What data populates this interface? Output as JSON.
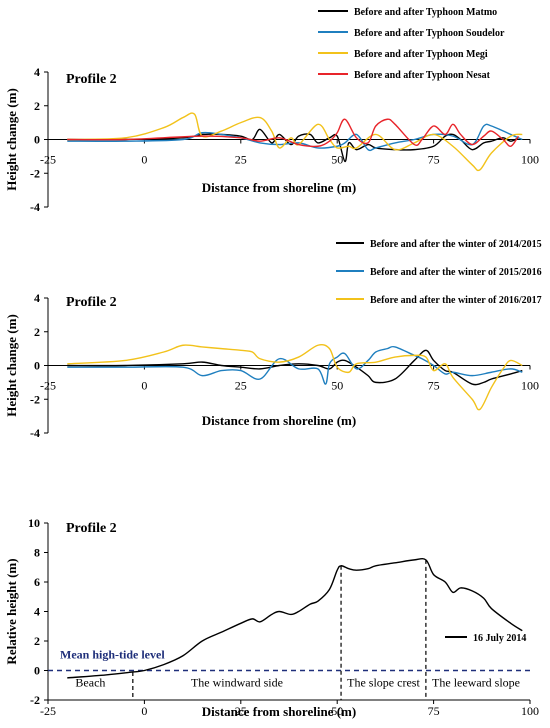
{
  "chart_data": [
    {
      "type": "line",
      "panel_label": "Profile 2",
      "xlabel": "Distance from shoreline (m)",
      "ylabel": "Height change (m)",
      "xlim": [
        -25,
        100
      ],
      "ylim": [
        -4,
        4
      ],
      "xticks": [
        "-25",
        "0",
        "25",
        "50",
        "75",
        "100"
      ],
      "yticks": [
        "4",
        "2",
        "0",
        "-2",
        "-4"
      ],
      "legend_position": "top-right",
      "series": [
        {
          "name": "Before and after Typhoon Matmo",
          "color": "#000000",
          "x": [
            -20,
            -5,
            10,
            15,
            20,
            25,
            28,
            30,
            33,
            35,
            38,
            40,
            43,
            45,
            48,
            50,
            52,
            53,
            55,
            58,
            60,
            65,
            70,
            75,
            78,
            80,
            82,
            85,
            88,
            90,
            93,
            95,
            97
          ],
          "y": [
            0,
            0,
            0.1,
            0.3,
            0.3,
            0.2,
            0,
            0.6,
            -0.2,
            0.3,
            -0.3,
            0.2,
            0.3,
            -0.2,
            0.1,
            0.2,
            -1.3,
            -0.2,
            -0.6,
            -0.3,
            -0.5,
            -0.6,
            -0.6,
            -0.4,
            0.2,
            0.3,
            0,
            -0.6,
            -0.2,
            -0.1,
            0.1,
            -0.1,
            0.1
          ]
        },
        {
          "name": "Before and after Typhoon Soudelor",
          "color": "#1f7fbf",
          "x": [
            -20,
            -5,
            10,
            15,
            20,
            25,
            30,
            35,
            40,
            45,
            50,
            52,
            55,
            58,
            60,
            65,
            70,
            75,
            80,
            85,
            88,
            90,
            95,
            98
          ],
          "y": [
            -0.1,
            -0.1,
            0,
            0.4,
            0.3,
            0.1,
            -0.2,
            -0.3,
            -0.2,
            -0.5,
            -0.4,
            -0.2,
            0.3,
            -0.6,
            -0.5,
            -0.2,
            0,
            0.3,
            0.2,
            -0.3,
            0.8,
            0.8,
            0.3,
            0
          ]
        },
        {
          "name": "Before and after Typhoon Megi",
          "color": "#f2c21b",
          "x": [
            -20,
            -5,
            5,
            10,
            13,
            15,
            20,
            25,
            30,
            33,
            35,
            38,
            40,
            45,
            48,
            50,
            53,
            55,
            60,
            65,
            70,
            75,
            80,
            85,
            87,
            90,
            95,
            98
          ],
          "y": [
            0,
            0.1,
            0.7,
            1.3,
            1.5,
            0.2,
            0.5,
            1,
            1.3,
            0.5,
            -0.5,
            0.1,
            -0.3,
            0.9,
            0,
            -0.5,
            -0.4,
            -0.5,
            0.3,
            -0.6,
            -0.2,
            0.3,
            -0.4,
            -1.5,
            -1.8,
            -0.8,
            0.2,
            0.3
          ]
        },
        {
          "name": "Before and after Typhoon Nesat",
          "color": "#e8242a",
          "x": [
            -20,
            -5,
            15,
            25,
            30,
            35,
            40,
            45,
            48,
            50,
            52,
            55,
            58,
            60,
            63,
            65,
            70,
            72,
            75,
            78,
            80,
            82,
            85,
            88,
            90,
            93,
            95,
            97
          ],
          "y": [
            0,
            0,
            0.2,
            0.1,
            -0.1,
            0.1,
            -0.3,
            -0.4,
            -0.1,
            0.4,
            1.2,
            0.1,
            -0.2,
            0.8,
            1.2,
            0.9,
            -0.3,
            0,
            0.8,
            0.3,
            0.9,
            0.3,
            -0.3,
            0.2,
            0.5,
            0,
            -0.4,
            0.2
          ]
        }
      ]
    },
    {
      "type": "line",
      "panel_label": "Profile 2",
      "xlabel": "Distance from shoreline (m)",
      "ylabel": "Height change (m)",
      "xlim": [
        -25,
        100
      ],
      "ylim": [
        -4,
        4
      ],
      "xticks": [
        "-25",
        "0",
        "25",
        "50",
        "75",
        "100"
      ],
      "yticks": [
        "4",
        "2",
        "0",
        "-2",
        "-4"
      ],
      "legend_position": "top-right",
      "series": [
        {
          "name": "Before and after the winter of 2014/2015",
          "color": "#000000",
          "x": [
            -20,
            -5,
            10,
            15,
            20,
            25,
            30,
            35,
            40,
            45,
            48,
            50,
            52,
            55,
            58,
            60,
            65,
            70,
            73,
            75,
            78,
            80,
            85,
            88,
            90,
            95,
            98
          ],
          "y": [
            0,
            0,
            0.1,
            0.2,
            0,
            -0.1,
            -0.2,
            0,
            0.1,
            0,
            -0.2,
            0.2,
            0.3,
            -0.1,
            -0.6,
            -1,
            -0.8,
            0.3,
            0.9,
            0.3,
            -0.3,
            -0.4,
            -1.1,
            -1,
            -0.8,
            -0.5,
            -0.3
          ]
        },
        {
          "name": "Before and after the winter of 2015/2016",
          "color": "#1f7fbf",
          "x": [
            -20,
            -5,
            10,
            15,
            20,
            25,
            30,
            35,
            40,
            45,
            47,
            48,
            50,
            52,
            55,
            58,
            60,
            63,
            65,
            70,
            72,
            75,
            78,
            80,
            85,
            90,
            95,
            98
          ],
          "y": [
            -0.1,
            -0.1,
            -0.1,
            -0.6,
            -0.3,
            -0.3,
            -0.8,
            0.4,
            -0.2,
            -0.2,
            -1.1,
            0.1,
            0.5,
            0.7,
            -0.2,
            0.3,
            0.8,
            1,
            1.1,
            0.6,
            0.4,
            0,
            -0.5,
            -0.4,
            -0.6,
            -0.4,
            -0.2,
            -0.4
          ]
        },
        {
          "name": "Before and after the winter of 2016/2017",
          "color": "#f2c21b",
          "x": [
            -20,
            -5,
            5,
            10,
            15,
            20,
            25,
            28,
            30,
            35,
            40,
            45,
            48,
            50,
            53,
            55,
            60,
            65,
            70,
            73,
            75,
            78,
            80,
            85,
            87,
            90,
            93,
            95,
            98
          ],
          "y": [
            0.1,
            0.3,
            0.8,
            1.2,
            1.1,
            1,
            0.9,
            0.8,
            0.4,
            0.2,
            0.5,
            1.2,
            1,
            -0.1,
            -0.4,
            0.1,
            0.2,
            0.5,
            0.6,
            0.5,
            -0.3,
            0.1,
            -0.7,
            -2,
            -2.6,
            -1.3,
            -0.2,
            0.3,
            0
          ]
        }
      ]
    },
    {
      "type": "line",
      "panel_label": "Profile 2",
      "xlabel": "Distance from shoreline (m)",
      "ylabel": "Relative height (m)",
      "xlim": [
        -25,
        100
      ],
      "ylim": [
        -2,
        10
      ],
      "xticks": [
        "-25",
        "0",
        "25",
        "50",
        "75",
        "100"
      ],
      "yticks": [
        "10",
        "8",
        "6",
        "4",
        "2",
        "0",
        "-2"
      ],
      "legend_position": "lower-right",
      "reference_line": {
        "label": "Mean high-tide level",
        "y": 0,
        "color": "#1f2f7a"
      },
      "zone_dividers_x": [
        -3,
        51,
        73
      ],
      "zones": [
        {
          "label": "Beach",
          "x": -14
        },
        {
          "label": "The windward side",
          "x": 24
        },
        {
          "label": "The slope crest",
          "x": 62
        },
        {
          "label": "The leeward slope",
          "x": 86
        }
      ],
      "series": [
        {
          "name": "16 July 2014",
          "color": "#000000",
          "x": [
            -20,
            -10,
            -3,
            0,
            5,
            10,
            15,
            20,
            25,
            28,
            30,
            33,
            35,
            38,
            40,
            43,
            45,
            48,
            50,
            51,
            53,
            55,
            58,
            60,
            65,
            70,
            73,
            75,
            78,
            80,
            82,
            85,
            88,
            90,
            95,
            98
          ],
          "y": [
            -0.5,
            -0.3,
            -0.1,
            0,
            0.4,
            1,
            2,
            2.6,
            3.2,
            3.5,
            3.3,
            3.8,
            4,
            3.8,
            4,
            4.5,
            4.7,
            5.5,
            6.8,
            7.1,
            6.9,
            6.8,
            6.9,
            7.1,
            7.3,
            7.5,
            7.5,
            6.5,
            6,
            5.3,
            5.6,
            5.4,
            4.9,
            4.2,
            3.2,
            2.7
          ]
        }
      ]
    }
  ]
}
